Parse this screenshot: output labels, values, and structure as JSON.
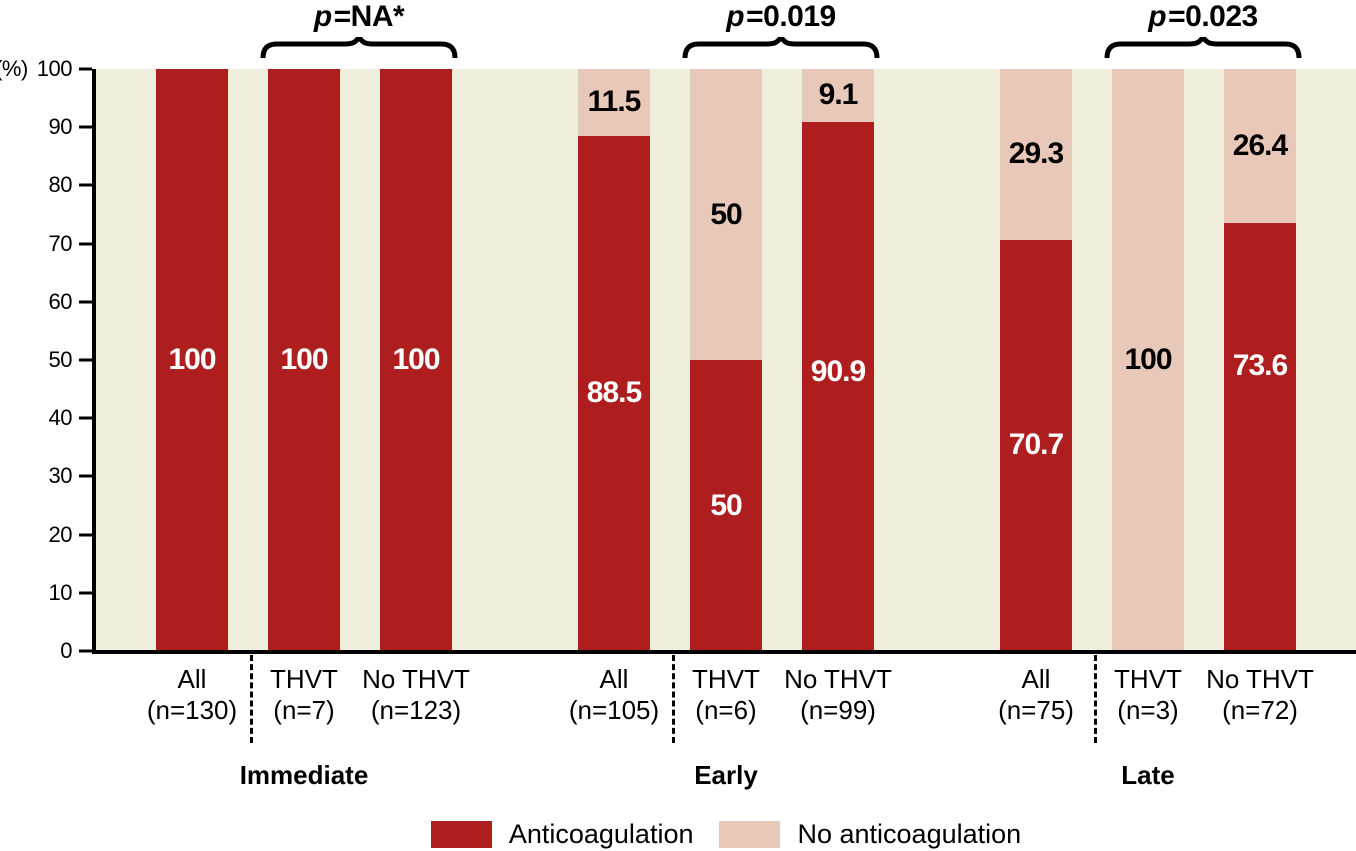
{
  "chart_data": {
    "type": "bar",
    "stacked": true,
    "orientation": "vertical",
    "unit_label": "(%)",
    "ylim": [
      0,
      100
    ],
    "yticks": [
      100,
      90,
      80,
      70,
      60,
      50,
      40,
      30,
      20,
      10,
      0
    ],
    "grid": false,
    "plot_bg": "#f0eedd",
    "legend_position": "bottom",
    "legend": [
      {
        "name": "Anticoagulation",
        "color": "#ae1e1f",
        "value_label_color": "#ffffff"
      },
      {
        "name": "No anticoagulation",
        "color": "#e8c8b8",
        "value_label_color": "#000000"
      }
    ],
    "groups": [
      {
        "name": "Immediate",
        "p_prefix": "p",
        "p_suffix": "=NA*",
        "bars": [
          {
            "label": "All",
            "n_label": "(n=130)",
            "anticoagulation": 100,
            "no_anticoagulation": 0,
            "anticoagulation_display": "100",
            "no_anticoagulation_display": ""
          },
          {
            "label": "THVT",
            "n_label": "(n=7)",
            "anticoagulation": 100,
            "no_anticoagulation": 0,
            "anticoagulation_display": "100",
            "no_anticoagulation_display": ""
          },
          {
            "label": "No THVT",
            "n_label": "(n=123)",
            "anticoagulation": 100,
            "no_anticoagulation": 0,
            "anticoagulation_display": "100",
            "no_anticoagulation_display": ""
          }
        ]
      },
      {
        "name": "Early",
        "p_prefix": "p",
        "p_suffix": "=0.019",
        "bars": [
          {
            "label": "All",
            "n_label": "(n=105)",
            "anticoagulation": 88.5,
            "no_anticoagulation": 11.5,
            "anticoagulation_display": "88.5",
            "no_anticoagulation_display": "11.5"
          },
          {
            "label": "THVT",
            "n_label": "(n=6)",
            "anticoagulation": 50,
            "no_anticoagulation": 50,
            "anticoagulation_display": "50",
            "no_anticoagulation_display": "50"
          },
          {
            "label": "No THVT",
            "n_label": "(n=99)",
            "anticoagulation": 90.9,
            "no_anticoagulation": 9.1,
            "anticoagulation_display": "90.9",
            "no_anticoagulation_display": "9.1",
            "anticoagulation_label_y_pct": 52
          }
        ]
      },
      {
        "name": "Late",
        "p_prefix": "p",
        "p_suffix": "=0.023",
        "bars": [
          {
            "label": "All",
            "n_label": "(n=75)",
            "anticoagulation": 70.7,
            "no_anticoagulation": 29.3,
            "anticoagulation_display": "70.7",
            "no_anticoagulation_display": "29.3"
          },
          {
            "label": "THVT",
            "n_label": "(n=3)",
            "anticoagulation": 0,
            "no_anticoagulation": 100,
            "anticoagulation_display": "",
            "no_anticoagulation_display": "100"
          },
          {
            "label": "No THVT",
            "n_label": "(n=72)",
            "anticoagulation": 73.6,
            "no_anticoagulation": 26.4,
            "anticoagulation_display": "73.6",
            "no_anticoagulation_display": "26.4",
            "anticoagulation_label_y_pct": 51
          }
        ]
      }
    ]
  }
}
